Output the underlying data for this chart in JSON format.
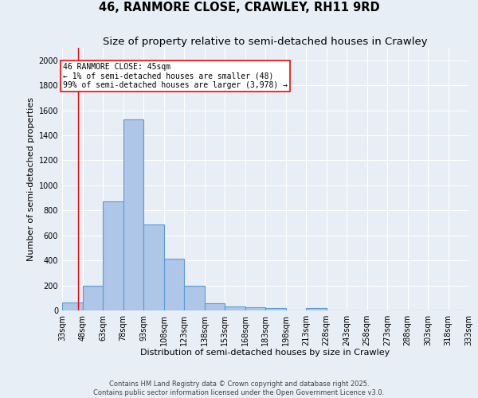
{
  "title": "46, RANMORE CLOSE, CRAWLEY, RH11 9RD",
  "subtitle": "Size of property relative to semi-detached houses in Crawley",
  "xlabel": "Distribution of semi-detached houses by size in Crawley",
  "ylabel": "Number of semi-detached properties",
  "footer_line1": "Contains HM Land Registry data © Crown copyright and database right 2025.",
  "footer_line2": "Contains public sector information licensed under the Open Government Licence v3.0.",
  "bin_edges": [
    33,
    48,
    63,
    78,
    93,
    108,
    123,
    138,
    153,
    168,
    183,
    198,
    213,
    228,
    243,
    258,
    273,
    288,
    303,
    318,
    333
  ],
  "bin_labels": [
    "33sqm",
    "48sqm",
    "63sqm",
    "78sqm",
    "93sqm",
    "108sqm",
    "123sqm",
    "138sqm",
    "153sqm",
    "168sqm",
    "183sqm",
    "198sqm",
    "213sqm",
    "228sqm",
    "243sqm",
    "258sqm",
    "273sqm",
    "288sqm",
    "303sqm",
    "318sqm",
    "333sqm"
  ],
  "counts": [
    65,
    195,
    870,
    1530,
    685,
    415,
    195,
    60,
    30,
    25,
    20,
    0,
    20,
    0,
    0,
    0,
    0,
    0,
    0,
    0
  ],
  "bar_color": "#aec6e8",
  "bar_edge_color": "#5b9bd5",
  "red_line_x": 45,
  "annotation_line1": "46 RANMORE CLOSE: 45sqm",
  "annotation_line2": "← 1% of semi-detached houses are smaller (48)",
  "annotation_line3": "99% of semi-detached houses are larger (3,978) →",
  "ylim": [
    0,
    2100
  ],
  "yticks": [
    0,
    200,
    400,
    600,
    800,
    1000,
    1200,
    1400,
    1600,
    1800,
    2000
  ],
  "background_color": "#e8eef5",
  "grid_color": "#ffffff",
  "title_fontsize": 10.5,
  "subtitle_fontsize": 9.5,
  "axis_label_fontsize": 8,
  "tick_fontsize": 7,
  "footer_fontsize": 6,
  "annotation_fontsize": 7
}
